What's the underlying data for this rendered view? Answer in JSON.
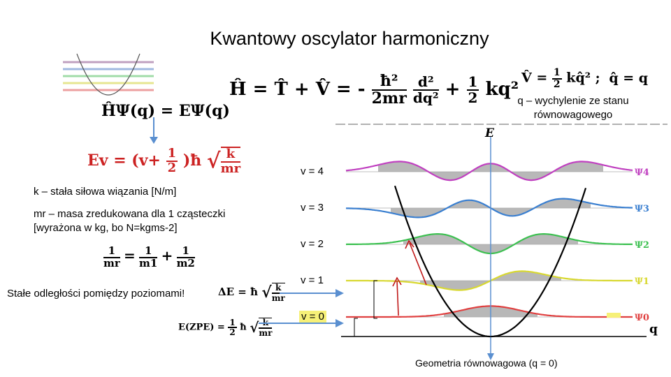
{
  "title": "Kwantowy oscylator harmoniczny",
  "hamiltonian": {
    "lhs": "Ĥ = T̂ + V̂ = -",
    "kin_num": "ħ²",
    "kin_den": "2mr",
    "op_num": "d²",
    "op_den": "dq²",
    "plus": "+",
    "pot_num": "1",
    "pot_den": "2",
    "pot_term": "kq²"
  },
  "potential": {
    "lhs": "V̂ =",
    "num": "1",
    "den": "2",
    "term": "kq̂² ;",
    "q_eq": "q̂ = q"
  },
  "q_note": "q – wychylenie ze stanu równowagowego",
  "schrodinger": "ĤΨ(q) = EΨ(q)",
  "energy": {
    "lhs": "Ev = (v+",
    "num": "1",
    "den": "2",
    "hbar": ")ħ",
    "sqrt_num": "k",
    "sqrt_den": "mr"
  },
  "k_def": "k – stała siłowa wiązania [N/m]",
  "mr_def_1": "mr – masa zredukowana dla 1 cząsteczki",
  "mr_def_2": "[wyrażona w kg, bo N=kgms-2]",
  "reduced_mass": {
    "lhs_num": "1",
    "lhs_den": "mr",
    "eq": "=",
    "a_num": "1",
    "a_den": "m1",
    "plus": "+",
    "b_num": "1",
    "b_den": "m2"
  },
  "spacing_text": "Stałe odległości pomiędzy poziomami!",
  "delta_e": {
    "lhs": "ΔE = ħ",
    "sqrt_num": "k",
    "sqrt_den": "mr"
  },
  "zpe": {
    "lhs": "E(ZPE) =",
    "num": "1",
    "den": "2",
    "hbar": "ħ",
    "sqrt_num": "k",
    "sqrt_den": "mr"
  },
  "levels": [
    "v = 4",
    "v = 3",
    "v = 2",
    "v = 1",
    "v = 0"
  ],
  "psi_labels": [
    "Ψ4",
    "Ψ3",
    "Ψ2",
    "Ψ1",
    "Ψ0"
  ],
  "psi_colors": [
    "#c040c0",
    "#3a7fd0",
    "#3cc050",
    "#d8d830",
    "#e04040"
  ],
  "axis_e": "E",
  "axis_q": "q",
  "equilibrium": "Geometria równowagowa (q = 0)"
}
